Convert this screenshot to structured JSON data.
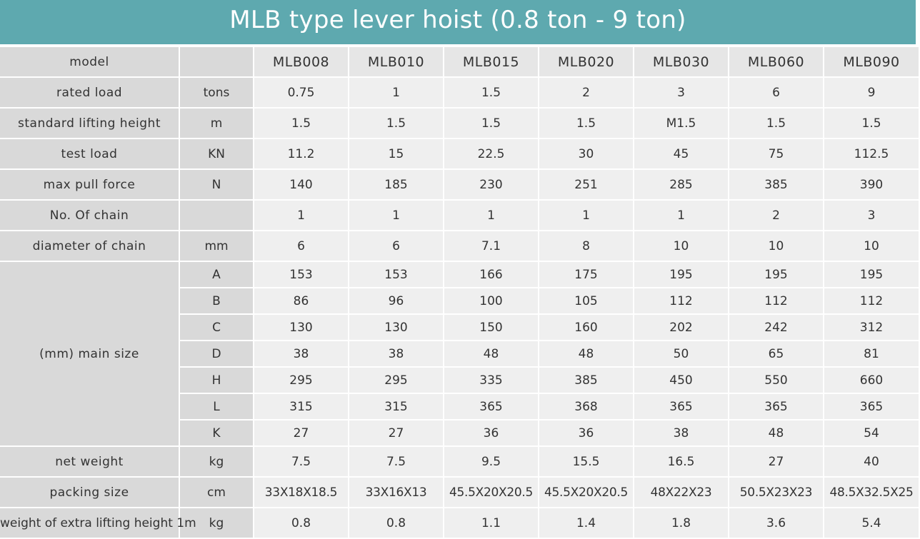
{
  "title": "MLB type lever hoist (0.8 ton - 9 ton)",
  "header": {
    "label": "model",
    "unit": "",
    "models": [
      "MLB008",
      "MLB010",
      "MLB015",
      "MLB020",
      "MLB030",
      "MLB060",
      "MLB090"
    ]
  },
  "rows_top": [
    {
      "name": "rated load",
      "unit": "tons",
      "values": [
        "0.75",
        "1",
        "1.5",
        "2",
        "3",
        "6",
        "9"
      ]
    },
    {
      "name": "standard lifting height",
      "unit": "m",
      "values": [
        "1.5",
        "1.5",
        "1.5",
        "1.5",
        "M1.5",
        "1.5",
        "1.5"
      ]
    },
    {
      "name": "test load",
      "unit": "KN",
      "values": [
        "11.2",
        "15",
        "22.5",
        "30",
        "45",
        "75",
        "112.5"
      ]
    },
    {
      "name": "max pull force",
      "unit": "N",
      "values": [
        "140",
        "185",
        "230",
        "251",
        "285",
        "385",
        "390"
      ]
    },
    {
      "name": "No. Of chain",
      "unit": "",
      "values": [
        "1",
        "1",
        "1",
        "1",
        "1",
        "2",
        "3"
      ]
    },
    {
      "name": "diameter of chain",
      "unit": "mm",
      "values": [
        "6",
        "6",
        "7.1",
        "8",
        "10",
        "10",
        "10"
      ]
    }
  ],
  "main_size": {
    "name": "(mm) main size",
    "rows": [
      {
        "unit": "A",
        "values": [
          "153",
          "153",
          "166",
          "175",
          "195",
          "195",
          "195"
        ]
      },
      {
        "unit": "B",
        "values": [
          "86",
          "96",
          "100",
          "105",
          "112",
          "112",
          "112"
        ]
      },
      {
        "unit": "C",
        "values": [
          "130",
          "130",
          "150",
          "160",
          "202",
          "242",
          "312"
        ]
      },
      {
        "unit": "D",
        "values": [
          "38",
          "38",
          "48",
          "48",
          "50",
          "65",
          "81"
        ]
      },
      {
        "unit": "H",
        "values": [
          "295",
          "295",
          "335",
          "385",
          "450",
          "550",
          "660"
        ]
      },
      {
        "unit": "L",
        "values": [
          "315",
          "315",
          "365",
          "368",
          "365",
          "365",
          "365"
        ]
      },
      {
        "unit": "K",
        "values": [
          "27",
          "27",
          "36",
          "36",
          "38",
          "48",
          "54"
        ]
      }
    ]
  },
  "rows_bottom": [
    {
      "name": "net weight",
      "unit": "kg",
      "values": [
        "7.5",
        "7.5",
        "9.5",
        "15.5",
        "16.5",
        "27",
        "40"
      ]
    },
    {
      "name": "packing size",
      "unit": "cm",
      "values": [
        "33X18X18.5",
        "33X16X13",
        "45.5X20X20.5",
        "45.5X20X20.5",
        "48X22X23",
        "50.5X23X23",
        "48.5X32.5X25"
      ]
    },
    {
      "name": "weight of extra lifting height 1m",
      "unit": "kg",
      "values": [
        "0.8",
        "0.8",
        "1.1",
        "1.4",
        "1.8",
        "3.6",
        "5.4"
      ]
    }
  ]
}
